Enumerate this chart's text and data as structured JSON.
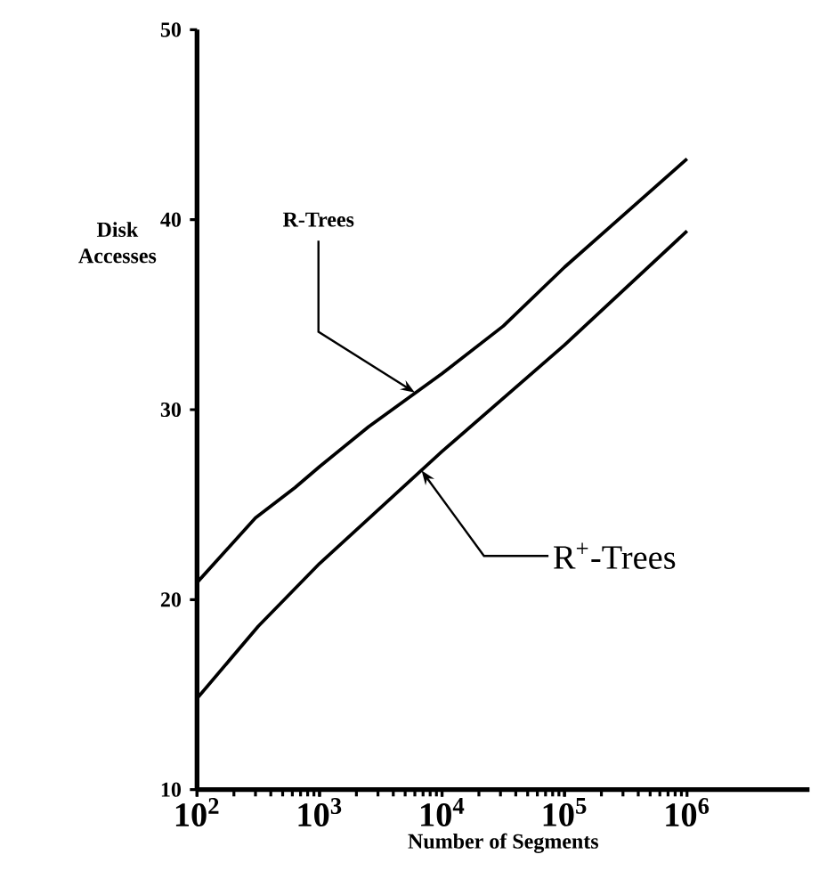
{
  "chart_data": {
    "type": "line",
    "xlabel": "Number of Segments",
    "ylabel": "Disk Accesses",
    "log": "x",
    "grid": false,
    "marker": "none",
    "line_style": "solid",
    "xlim": [
      100,
      10000000
    ],
    "ylim": [
      10,
      50
    ],
    "xticks": [
      {
        "value": 100,
        "label": "10$^{2}$"
      },
      {
        "value": 1000,
        "label": "10$^{3}$"
      },
      {
        "value": 10000,
        "label": "10$^{4}$"
      },
      {
        "value": 100000,
        "label": "10$^{5}$"
      },
      {
        "value": 1000000,
        "label": "10$^{6}$"
      }
    ],
    "yticks": [
      10,
      20,
      30,
      40,
      50
    ],
    "annotations": [
      {
        "text": "R-Trees",
        "x": 6000,
        "y": 30.9
      },
      {
        "text": "R$^{+}$-Trees",
        "x": 6800,
        "y": 26.8
      }
    ],
    "series": [
      {
        "color": "#000000",
        "x": [
          100,
          300,
          631,
          1000,
          2512,
          10000,
          31623,
          100000,
          1000000
        ],
        "values": [
          20.9,
          24.3,
          25.9,
          27.0,
          29.1,
          31.9,
          34.4,
          37.5,
          43.2
        ]
      },
      {
        "color": "#000000",
        "x": [
          100,
          316,
          1000,
          10000,
          100000,
          1000000
        ],
        "values": [
          14.8,
          18.6,
          21.9,
          27.8,
          33.4,
          39.4
        ]
      }
    ]
  }
}
